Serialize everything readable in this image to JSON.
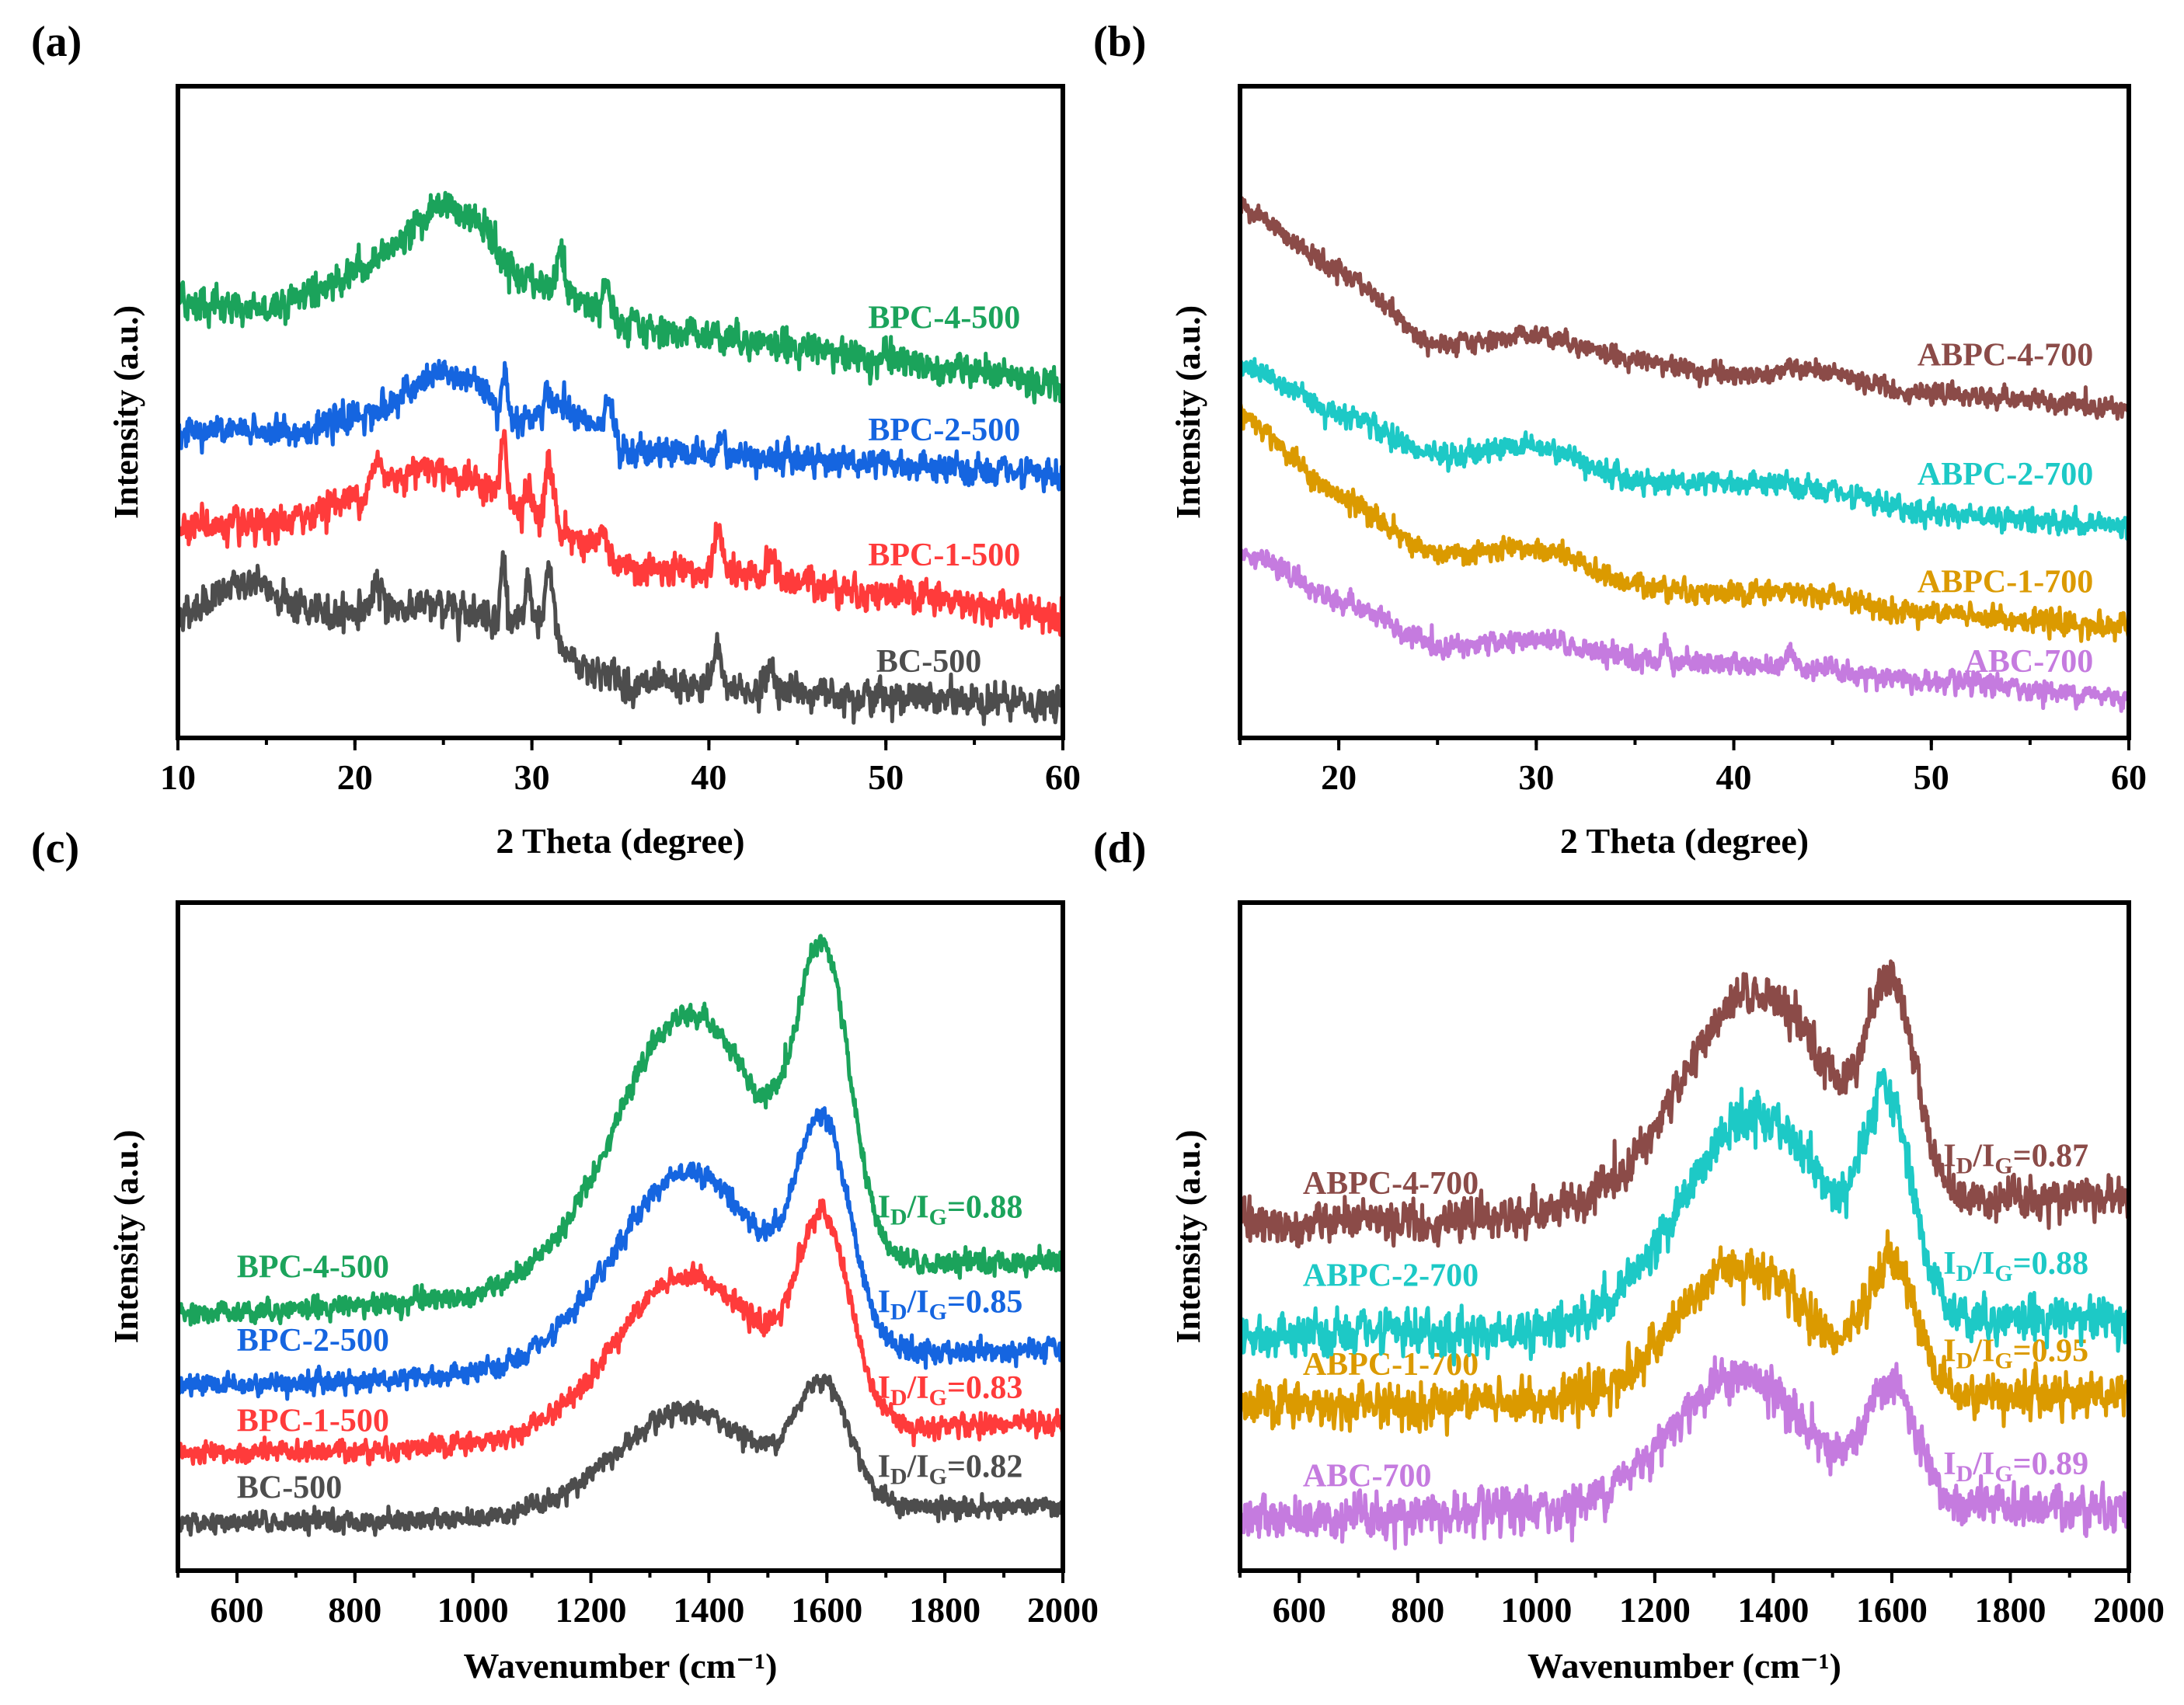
{
  "chart_data": [
    {
      "panel": "(a)",
      "type": "line",
      "xlabel": "2 Theta (degree)",
      "ylabel": "Intensity (a.u.)",
      "xlim": [
        10,
        60
      ],
      "ylim": [
        0,
        100
      ],
      "xticks": [
        10,
        20,
        30,
        40,
        50,
        60
      ],
      "xminor": 5,
      "grid": false,
      "series": [
        {
          "name": "BC-500",
          "color": "#4D4D4D",
          "noise": 2.0,
          "baseline": [
            [
              10,
              19
            ],
            [
              14,
              24
            ],
            [
              18,
              19
            ],
            [
              22,
              20
            ],
            [
              26,
              20
            ],
            [
              30,
              17
            ],
            [
              33,
              11
            ],
            [
              36,
              8
            ],
            [
              45,
              7
            ],
            [
              60,
              5
            ]
          ],
          "peaks": [
            [
              21.3,
              3,
              0.3
            ],
            [
              28.4,
              9,
              0.15
            ],
            [
              29.8,
              8,
              0.15
            ],
            [
              31,
              10,
              0.25
            ],
            [
              40.5,
              6,
              0.25
            ],
            [
              43.5,
              4,
              0.25
            ]
          ],
          "label_at": [
            55.4,
            11.3
          ]
        },
        {
          "name": "BPC-1-500",
          "color": "#FF3B3B",
          "noise": 2.0,
          "baseline": [
            [
              10,
              33
            ],
            [
              15,
              32
            ],
            [
              20,
              37
            ],
            [
              24,
              42
            ],
            [
              27,
              39
            ],
            [
              30,
              34
            ],
            [
              33,
              30
            ],
            [
              35,
              26
            ],
            [
              40,
              25
            ],
            [
              45,
              24
            ],
            [
              50,
              22
            ],
            [
              60,
              19
            ]
          ],
          "peaks": [
            [
              21.3,
              4,
              0.3
            ],
            [
              28.4,
              10,
              0.15
            ],
            [
              29.8,
              5,
              0.15
            ],
            [
              31,
              9,
              0.25
            ],
            [
              34,
              3,
              0.3
            ],
            [
              40.5,
              8,
              0.22
            ],
            [
              43.5,
              4,
              0.22
            ]
          ],
          "label_at": [
            57.6,
            27.6
          ]
        },
        {
          "name": "BPC-2-500",
          "color": "#1565E0",
          "noise": 1.8,
          "baseline": [
            [
              10,
              47
            ],
            [
              17,
              47
            ],
            [
              21,
              50
            ],
            [
              25,
              56
            ],
            [
              27,
              54
            ],
            [
              29,
              49
            ],
            [
              33,
              49
            ],
            [
              35,
              44
            ],
            [
              45,
              43
            ],
            [
              60,
              40
            ]
          ],
          "peaks": [
            [
              28.5,
              6,
              0.15
            ],
            [
              31,
              4,
              0.25
            ],
            [
              31.8,
              3,
              0.2
            ],
            [
              34.4,
              6,
              0.22
            ],
            [
              40.7,
              3,
              0.2
            ]
          ],
          "label_at": [
            57.6,
            46.8
          ]
        },
        {
          "name": "BPC-4-500",
          "color": "#1BA35B",
          "noise": 2.0,
          "baseline": [
            [
              10,
              67
            ],
            [
              15,
              66
            ],
            [
              18,
              69
            ],
            [
              21,
              73
            ],
            [
              25,
              82
            ],
            [
              27,
              79
            ],
            [
              29,
              71
            ],
            [
              31,
              69
            ],
            [
              33,
              67
            ],
            [
              35,
              63
            ],
            [
              40,
              62
            ],
            [
              45,
              60
            ],
            [
              50,
              58
            ],
            [
              60,
              54
            ]
          ],
          "peaks": [
            [
              31.6,
              6,
              0.2
            ],
            [
              34.2,
              5,
              0.22
            ]
          ],
          "label_at": [
            57.6,
            64
          ]
        }
      ]
    },
    {
      "panel": "(b)",
      "type": "line",
      "xlabel": "2 Theta (degree)",
      "ylabel": "Intensity (a.u.)",
      "xlim": [
        15,
        60
      ],
      "ylim": [
        0,
        100
      ],
      "xticks": [
        20,
        30,
        40,
        50,
        60
      ],
      "xminor": 5,
      "grid": false,
      "series": [
        {
          "name": "ABC-700",
          "color": "#C57BDF",
          "noise": 1.3,
          "baseline": [
            [
              15,
              29
            ],
            [
              20,
              21
            ],
            [
              25,
              14
            ],
            [
              30,
              15
            ],
            [
              35,
              12
            ],
            [
              43,
              11
            ],
            [
              50,
              8.5
            ],
            [
              60,
              6.4
            ]
          ],
          "peaks": [
            [
              36.5,
              3,
              0.15
            ],
            [
              42.8,
              2.5,
              0.2
            ]
          ],
          "label_at": [
            58.2,
            11.3
          ]
        },
        {
          "name": "ABPC-1-700",
          "color": "#DB9A00",
          "noise": 1.4,
          "baseline": [
            [
              15,
              50
            ],
            [
              20,
              37
            ],
            [
              25,
              28
            ],
            [
              30,
              29
            ],
            [
              35,
              23.5
            ],
            [
              40,
              22
            ],
            [
              43,
              22.5
            ],
            [
              50,
              19
            ],
            [
              60,
              17
            ]
          ],
          "peaks": [],
          "label_at": [
            58.2,
            23.5
          ]
        },
        {
          "name": "ABPC-2-700",
          "color": "#1DC9C6",
          "noise": 1.4,
          "baseline": [
            [
              15,
              57
            ],
            [
              20,
              50
            ],
            [
              25,
              43
            ],
            [
              30,
              45
            ],
            [
              35,
              39.5
            ],
            [
              42,
              39
            ],
            [
              50,
              34.6
            ],
            [
              60,
              32.5
            ]
          ],
          "peaks": [],
          "label_at": [
            58.2,
            40
          ]
        },
        {
          "name": "ABPC-4-700",
          "color": "#8B4B48",
          "noise": 1.2,
          "baseline": [
            [
              15,
              81.6
            ],
            [
              20,
              71.6
            ],
            [
              25,
              60
            ],
            [
              30,
              62
            ],
            [
              35,
              58
            ],
            [
              40,
              55.5
            ],
            [
              43,
              56.6
            ],
            [
              50,
              52.8
            ],
            [
              60,
              50.6
            ]
          ],
          "peaks": [],
          "label_at": [
            58.2,
            58.3
          ]
        }
      ]
    },
    {
      "panel": "(c)",
      "type": "line",
      "xlabel": "Wavenumber (cm⁻¹)",
      "ylabel": "Intensity (a.u.)",
      "xlim": [
        500,
        2000
      ],
      "ylim": [
        0,
        100
      ],
      "xticks": [
        600,
        800,
        1000,
        1200,
        1400,
        1600,
        1800,
        2000
      ],
      "xminor": 100,
      "grid": false,
      "ratio_symbol": {
        "main1": "I",
        "sub1": "D",
        "main2": "/I",
        "sub2": "G",
        "eq": "="
      },
      "series": [
        {
          "name": "BC-500",
          "color": "#4D4D4D",
          "noise": 1.2,
          "baseline": [
            [
              500,
              7
            ],
            [
              2000,
              9.6
            ]
          ],
          "peaks": [
            [
              1365,
              15,
              125
            ],
            [
              1595,
              17,
              45
            ]
          ],
          "label_at": [
            600,
            12
          ],
          "id_ig": "0.82",
          "ratio_at": [
            1686,
            15.2
          ]
        },
        {
          "name": "BPC-1-500",
          "color": "#FF3B3B",
          "noise": 1.3,
          "baseline": [
            [
              500,
              17.3
            ],
            [
              2000,
              22
            ]
          ],
          "peaks": [
            [
              1365,
              24,
              125
            ],
            [
              1595,
              28,
              45
            ]
          ],
          "label_at": [
            600,
            22
          ],
          "id_ig": "0.83",
          "ratio_at": [
            1686,
            27
          ]
        },
        {
          "name": "BPC-2-500",
          "color": "#1565E0",
          "noise": 1.3,
          "baseline": [
            [
              500,
              27.7
            ],
            [
              2000,
              33
            ]
          ],
          "peaks": [
            [
              1365,
              29,
              125
            ],
            [
              1595,
              31,
              45
            ]
          ],
          "label_at": [
            600,
            34
          ],
          "id_ig": "0.85",
          "ratio_at": [
            1686,
            39.8
          ]
        },
        {
          "name": "BPC-4-500",
          "color": "#1BA35B",
          "noise": 1.3,
          "baseline": [
            [
              500,
              38.5
            ],
            [
              2000,
              46.5
            ]
          ],
          "peaks": [
            [
              1365,
              40,
              125
            ],
            [
              1595,
              42,
              45
            ]
          ],
          "label_at": [
            600,
            45
          ],
          "id_ig": "0.88",
          "ratio_at": [
            1686,
            54
          ]
        }
      ]
    },
    {
      "panel": "(d)",
      "type": "line",
      "xlabel": "Wavenumber (cm⁻¹)",
      "ylabel": "Intensity (a.u.)",
      "xlim": [
        500,
        2000
      ],
      "ylim": [
        0,
        100
      ],
      "xticks": [
        600,
        800,
        1000,
        1200,
        1400,
        1600,
        1800,
        2000
      ],
      "xminor": 100,
      "grid": false,
      "ratio_symbol": {
        "main1": "I",
        "sub1": "D",
        "main2": "/I",
        "sub2": "G",
        "eq": "="
      },
      "series": [
        {
          "name": "ABC-700",
          "color": "#C57BDF",
          "noise": 2.6,
          "baseline": [
            [
              500,
              8
            ],
            [
              2000,
              9.6
            ]
          ],
          "peaks": [
            [
              1340,
              20,
              120
            ],
            [
              1600,
              17,
              40
            ]
          ],
          "label_at": [
            606,
            13.75
          ],
          "id_ig": "0.89",
          "ratio_at": [
            1687,
            15.6
          ]
        },
        {
          "name": "ABPC-1-700",
          "color": "#DB9A00",
          "noise": 2.6,
          "baseline": [
            [
              500,
              24.6
            ],
            [
              2000,
              26.7
            ]
          ],
          "peaks": [
            [
              1350,
              20,
              110
            ],
            [
              1600,
              19,
              40
            ]
          ],
          "label_at": [
            606,
            30.4
          ],
          "id_ig": "0.95",
          "ratio_at": [
            1687,
            32.5
          ]
        },
        {
          "name": "ABPC-2-700",
          "color": "#1DC9C6",
          "noise": 2.6,
          "baseline": [
            [
              500,
              35
            ],
            [
              2000,
              38
            ]
          ],
          "peaks": [
            [
              1370,
              31,
              125
            ],
            [
              1595,
              28,
              40
            ]
          ],
          "label_at": [
            606,
            43.75
          ],
          "id_ig": "0.88",
          "ratio_at": [
            1687,
            45.6
          ]
        },
        {
          "name": "ABPC-4-700",
          "color": "#8B4B48",
          "noise": 2.4,
          "baseline": [
            [
              500,
              51.7
            ],
            [
              2000,
              56
            ]
          ],
          "peaks": [
            [
              1370,
              32,
              125
            ],
            [
              1600,
              28,
              40
            ]
          ],
          "label_at": [
            606,
            57.5
          ],
          "id_ig": "0.87",
          "ratio_at": [
            1687,
            61.7
          ]
        }
      ]
    }
  ]
}
